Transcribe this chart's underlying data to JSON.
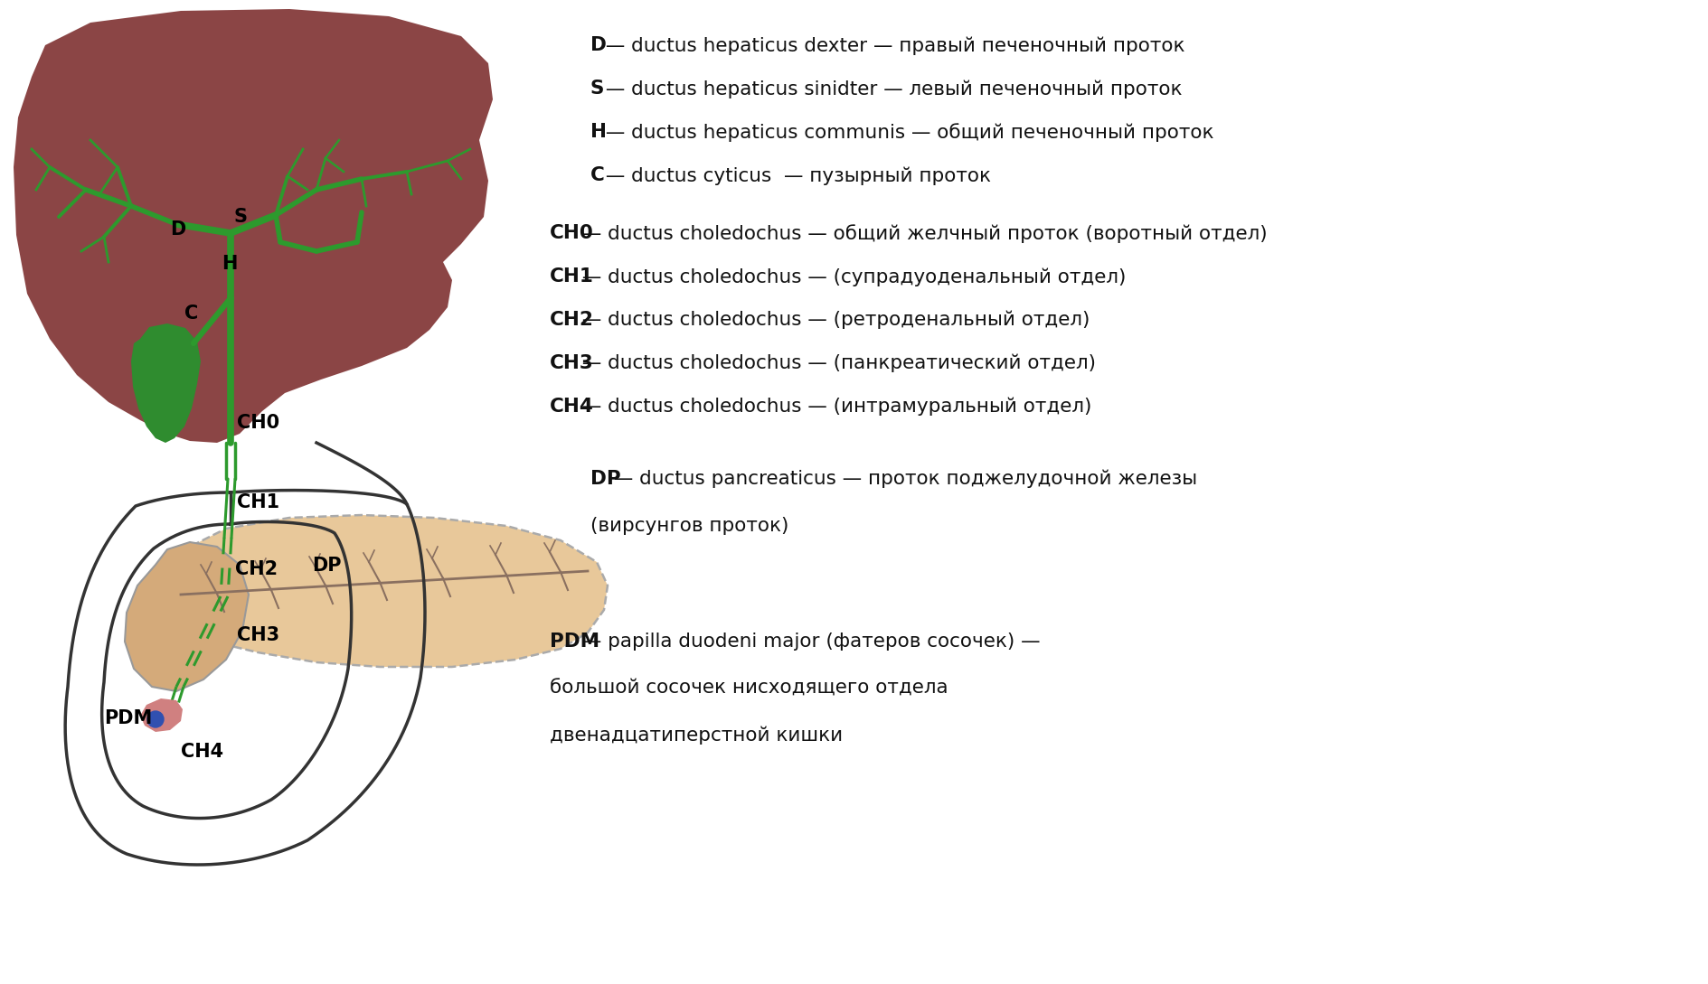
{
  "bg_color": "#ffffff",
  "liver_color": "#8B4545",
  "gallbladder_color": "#2f8c2f",
  "duct_color": "#2d9a2d",
  "pancreas_fill": "#e8c89a",
  "pancreas_head_fill": "#d4aa7a",
  "duodenum_color": "#333333",
  "panc_duct_color": "#8a7060",
  "text_color": "#000000",
  "legend_lines": [
    {
      "bold": "D",
      "text": " — ductus hepaticus dexter — правый печеночный проток"
    },
    {
      "bold": "S",
      "text": " — ductus hepaticus sinidter — левый печеночный проток"
    },
    {
      "bold": "H",
      "text": " — ductus hepaticus communis — общий печеночный проток"
    },
    {
      "bold": "C",
      "text": " — ductus cyticus  — пузырный проток"
    }
  ],
  "legend_ch_lines": [
    {
      "bold": "CH0",
      "text": " — ductus choledochus — общий желчный проток (воротный отдел)"
    },
    {
      "bold": "CH1",
      "text": " — ductus choledochus — (супрадуоденальный отдел)"
    },
    {
      "bold": "CH2",
      "text": " — ductus choledochus — (ретроденальный отдел)"
    },
    {
      "bold": "CH3",
      "text": " — ductus choledochus — (панкреатический отдел)"
    },
    {
      "bold": "CH4",
      "text": " — ductus choledochus — (интрамуральный отдел)"
    }
  ],
  "legend_dp_bold": "DP",
  "legend_dp_text": " — ductus pancreaticus — проток поджелудочной железы",
  "legend_dp_text2": "(вирсунгов проток)",
  "legend_pdm_bold": "PDM",
  "legend_pdm_text": " — papilla duodeni major (фатеров сосочек) —",
  "legend_pdm_text2": "большой сосочек нисходящего отдела",
  "legend_pdm_text3": "двенадцатиперстной кишки"
}
